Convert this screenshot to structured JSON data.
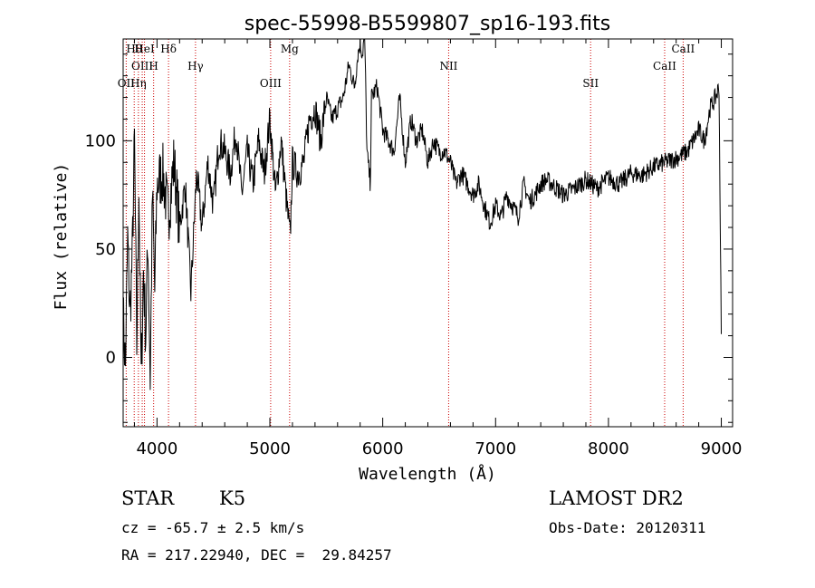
{
  "chart_data": {
    "type": "line",
    "title": "spec-55998-B5599807_sp16-193.fits",
    "xlabel": "Wavelength (Å)",
    "ylabel": "Flux (relative)",
    "xlim": [
      3700,
      9100
    ],
    "ylim": [
      -32,
      147
    ],
    "x_ticks": [
      4000,
      5000,
      6000,
      7000,
      8000,
      9000
    ],
    "y_ticks": [
      0,
      50,
      100
    ],
    "grid": false,
    "line_color": "#000000",
    "marker_color": "#cc0000",
    "series": [
      {
        "x": [
          3700,
          3720,
          3740,
          3760,
          3780,
          3800,
          3820,
          3840,
          3860,
          3880,
          3900,
          3920,
          3940,
          3960,
          3980,
          4000,
          4050,
          4100,
          4150,
          4200,
          4250,
          4300,
          4350,
          4400,
          4450,
          4500,
          4550,
          4600,
          4650,
          4700,
          4750,
          4800,
          4850,
          4900,
          4950,
          5000,
          5050,
          5100,
          5150,
          5180,
          5200,
          5250,
          5300,
          5350,
          5400,
          5450,
          5500,
          5550,
          5600,
          5650,
          5700,
          5750,
          5780,
          5800,
          5820,
          5840,
          5860,
          5880,
          5890,
          5900,
          5950,
          6000,
          6050,
          6100,
          6150,
          6200,
          6250,
          6300,
          6350,
          6400,
          6450,
          6500,
          6550,
          6600,
          6650,
          6700,
          6750,
          6800,
          6850,
          6900,
          6950,
          7000,
          7050,
          7100,
          7150,
          7200,
          7250,
          7300,
          7350,
          7400,
          7450,
          7500,
          7600,
          7700,
          7800,
          7900,
          8000,
          8100,
          8200,
          8300,
          8400,
          8500,
          8600,
          8700,
          8800,
          8850,
          8900,
          8950,
          8980,
          9000
        ],
        "y": [
          20,
          -5,
          55,
          20,
          45,
          100,
          5,
          80,
          -10,
          40,
          10,
          55,
          -10,
          75,
          30,
          80,
          85,
          65,
          90,
          60,
          80,
          30,
          85,
          60,
          90,
          70,
          100,
          95,
          85,
          105,
          75,
          95,
          80,
          100,
          85,
          110,
          75,
          100,
          70,
          55,
          90,
          85,
          90,
          110,
          115,
          100,
          120,
          110,
          115,
          120,
          135,
          125,
          140,
          145,
          140,
          150,
          95,
          85,
          80,
          120,
          125,
          105,
          100,
          95,
          120,
          90,
          110,
          100,
          105,
          90,
          100,
          95,
          95,
          90,
          80,
          85,
          80,
          75,
          80,
          70,
          62,
          70,
          65,
          75,
          70,
          65,
          80,
          72,
          75,
          80,
          82,
          80,
          75,
          78,
          82,
          78,
          83,
          80,
          85,
          84,
          88,
          90,
          92,
          95,
          105,
          100,
          115,
          120,
          125,
          10
        ]
      }
    ],
    "line_markers": [
      {
        "label": "Hθ",
        "x": 3798
      },
      {
        "label": "H",
        "x": 3970
      },
      {
        "label": "OII",
        "x": 3727
      },
      {
        "label": "HeI",
        "x": 3889
      },
      {
        "label": "OIII",
        "x": 3869
      },
      {
        "label": "Hη",
        "x": 3835
      },
      {
        "label": "Hδ",
        "x": 4102
      },
      {
        "label": "Hγ",
        "x": 4341
      },
      {
        "label": "OIII",
        "x": 5007
      },
      {
        "label": "Mg",
        "x": 5175
      },
      {
        "label": "NII",
        "x": 6584
      },
      {
        "label": "SII",
        "x": 7842
      },
      {
        "label": "CaII",
        "x": 8662
      },
      {
        "label": "CaII",
        "x": 8498
      }
    ]
  },
  "object": {
    "class": "STAR",
    "subclass": "K5",
    "survey": "LAMOST DR2",
    "velocity": "cz = -65.7 ± 2.5 km/s",
    "obs_date": "Obs-Date: 20120311",
    "coords": "RA = 217.22940, DEC =  29.84257"
  }
}
